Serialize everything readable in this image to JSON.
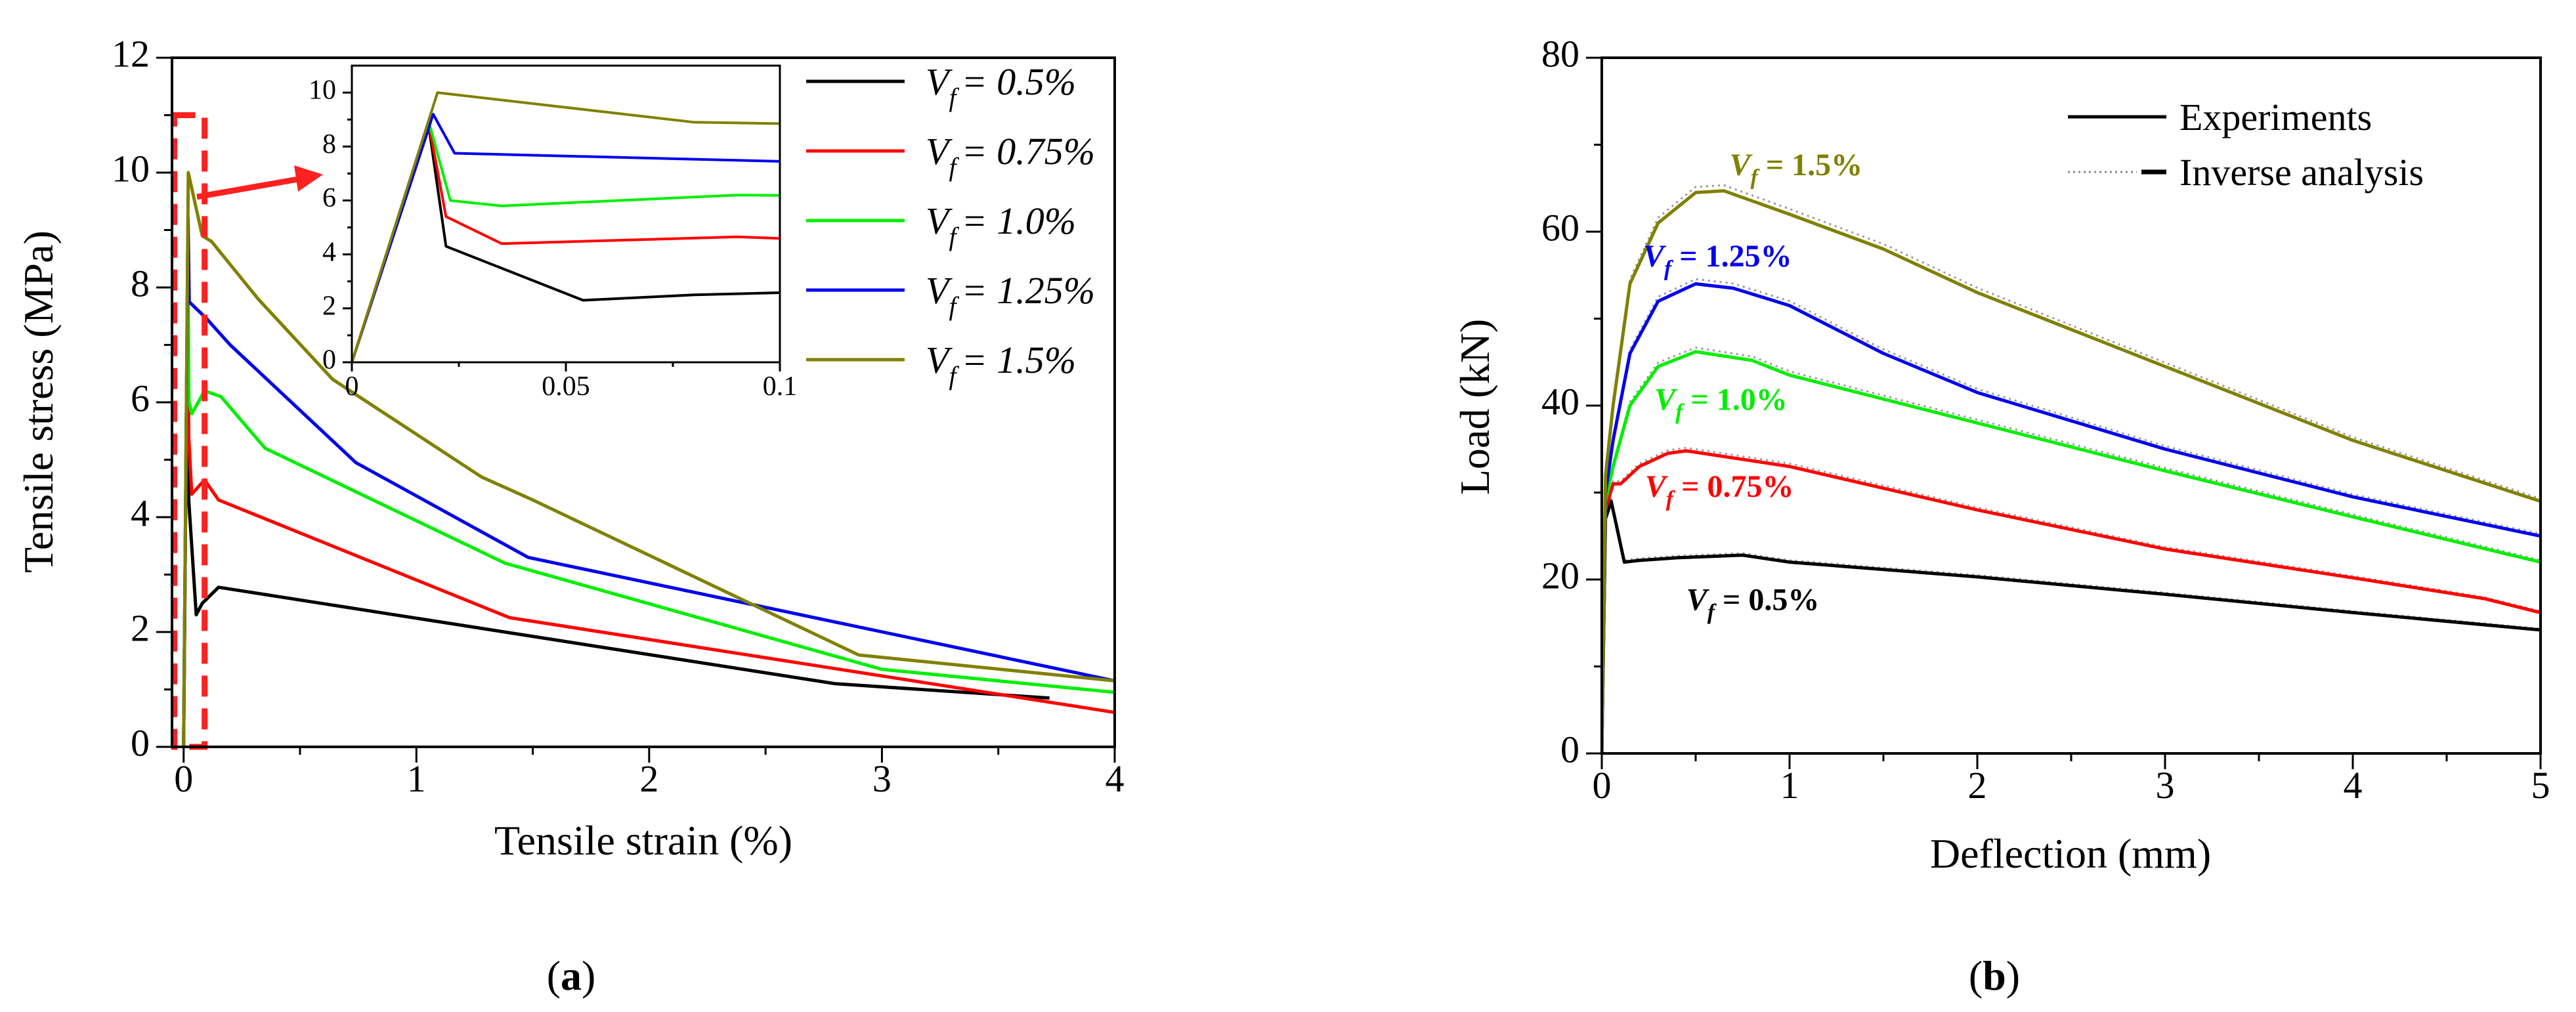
{
  "chart_data": [
    {
      "type": "line",
      "panel_label": "a",
      "xlabel": "Tensile strain (%)",
      "ylabel": "Tensile stress (MPa)",
      "xlim": [
        -0.05,
        4
      ],
      "ylim": [
        0,
        12
      ],
      "xticks": [
        "0",
        "1",
        "2",
        "3",
        "4"
      ],
      "yticks": [
        "0",
        "2",
        "4",
        "6",
        "8",
        "10",
        "12"
      ],
      "series": [
        {
          "name": "V_f = 0.5%",
          "legend_prefix": "V",
          "legend_sub": "f",
          "legend_suffix": "= 0.5%",
          "color": "#000000",
          "x": [
            0,
            0.018,
            0.022,
            0.054,
            0.08,
            0.15,
            2.8,
            3.72
          ],
          "y": [
            0,
            8.7,
            4.3,
            2.3,
            2.5,
            2.78,
            1.1,
            0.85
          ]
        },
        {
          "name": "V_f = 0.75%",
          "legend_prefix": "V",
          "legend_sub": "f",
          "legend_suffix": "= 0.75%",
          "color": "#ff0000",
          "x": [
            0,
            0.018,
            0.022,
            0.035,
            0.09,
            0.15,
            1.4,
            4.0
          ],
          "y": [
            0,
            8.8,
            5.4,
            4.4,
            4.65,
            4.3,
            2.25,
            0.6
          ]
        },
        {
          "name": "V_f = 1.0%",
          "legend_prefix": "V",
          "legend_sub": "f",
          "legend_suffix": "= 1.0%",
          "color": "#00ee00",
          "x": [
            0,
            0.018,
            0.023,
            0.035,
            0.09,
            0.16,
            0.35,
            1.38,
            3.0,
            4.0
          ],
          "y": [
            0,
            8.9,
            6.0,
            5.8,
            6.2,
            6.1,
            5.2,
            3.2,
            1.35,
            0.95
          ]
        },
        {
          "name": "V_f = 1.25%",
          "legend_prefix": "V",
          "legend_sub": "f",
          "legend_suffix": "= 1.25%",
          "color": "#0000ee",
          "x": [
            0,
            0.019,
            0.024,
            0.1,
            0.2,
            0.74,
            1.48,
            4.0
          ],
          "y": [
            0,
            9.2,
            7.75,
            7.45,
            7.0,
            4.95,
            3.3,
            1.15
          ]
        },
        {
          "name": "V_f = 1.5%",
          "legend_prefix": "V",
          "legend_sub": "f",
          "legend_suffix": "= 1.5%",
          "color": "#808000",
          "x": [
            0,
            0.02,
            0.08,
            0.12,
            0.32,
            0.64,
            1.28,
            1.5,
            2.9,
            4.0
          ],
          "y": [
            0,
            10.0,
            8.9,
            8.8,
            7.8,
            6.4,
            4.7,
            4.3,
            1.6,
            1.15
          ]
        }
      ],
      "inset": {
        "xlim": [
          0,
          0.1
        ],
        "ylim": [
          0,
          11
        ],
        "xticks": [
          "0",
          "0.05",
          "0.1"
        ],
        "yticks": [
          "0",
          "2",
          "4",
          "6",
          "8",
          "10"
        ],
        "highlight_box": {
          "x": [
            -0.04,
            0.09
          ],
          "y": [
            0,
            11
          ]
        }
      }
    },
    {
      "type": "line",
      "panel_label": "b",
      "xlabel": "Deflection (mm)",
      "ylabel": "Load (kN)",
      "xlim": [
        0,
        5
      ],
      "ylim": [
        0,
        80
      ],
      "xticks": [
        "0",
        "1",
        "2",
        "3",
        "4",
        "5"
      ],
      "yticks": [
        "0",
        "20",
        "40",
        "60",
        "80"
      ],
      "legend": [
        {
          "label": "Experiments",
          "style": "solid"
        },
        {
          "label": "Inverse analysis",
          "style": "dotted"
        }
      ],
      "series": [
        {
          "name": "V_f = 0.5%",
          "ann_prefix": "V",
          "ann_sub": "f",
          "ann_suffix": " = 0.5%",
          "color": "#000000",
          "x": [
            0,
            0.02,
            0.05,
            0.08,
            0.12,
            0.2,
            0.4,
            0.75,
            1.0,
            2.0,
            3.0,
            4.0,
            5.0
          ],
          "y": [
            0,
            27,
            29,
            26,
            22,
            22.2,
            22.5,
            22.8,
            22,
            20.3,
            18.3,
            16.2,
            14.2
          ]
        },
        {
          "name": "V_f = 0.75%",
          "ann_prefix": "V",
          "ann_sub": "f",
          "ann_suffix": " = 0.75%",
          "color": "#ff0000",
          "x": [
            0,
            0.02,
            0.06,
            0.1,
            0.2,
            0.35,
            0.45,
            1.0,
            2.0,
            3.0,
            4.0,
            4.7,
            5.0
          ],
          "y": [
            0,
            28,
            31,
            31,
            33,
            34.5,
            34.8,
            33,
            28,
            23.5,
            20.2,
            17.8,
            16.2
          ]
        },
        {
          "name": "V_f = 1.0%",
          "ann_prefix": "V",
          "ann_sub": "f",
          "ann_suffix": " = 1.0%",
          "color": "#00ee00",
          "x": [
            0,
            0.02,
            0.06,
            0.15,
            0.3,
            0.5,
            0.8,
            1.0,
            2.0,
            3.0,
            4.0,
            5.0
          ],
          "y": [
            0,
            29,
            33,
            40,
            44.5,
            46.2,
            45.2,
            43.5,
            38,
            32.5,
            27.2,
            22
          ]
        },
        {
          "name": "V_f = 1.25%",
          "ann_prefix": "V",
          "ann_sub": "f",
          "ann_suffix": " = 1.25%",
          "color": "#0000ee",
          "x": [
            0,
            0.02,
            0.06,
            0.15,
            0.3,
            0.5,
            0.7,
            1.0,
            1.5,
            2.0,
            3.0,
            4.0,
            5.0
          ],
          "y": [
            0,
            30,
            36,
            46,
            52,
            54,
            53.5,
            51.5,
            46,
            41.5,
            35,
            29.5,
            25
          ]
        },
        {
          "name": "V_f = 1.5%",
          "ann_prefix": "V",
          "ann_sub": "f",
          "ann_suffix": " = 1.5%",
          "color": "#808000",
          "x": [
            0,
            0.02,
            0.06,
            0.15,
            0.3,
            0.5,
            0.65,
            1.0,
            1.5,
            2.0,
            3.0,
            4.0,
            5.0
          ],
          "y": [
            0,
            32,
            40,
            54,
            61,
            64.5,
            64.7,
            62,
            58,
            53,
            44.5,
            36,
            29
          ]
        }
      ]
    }
  ]
}
